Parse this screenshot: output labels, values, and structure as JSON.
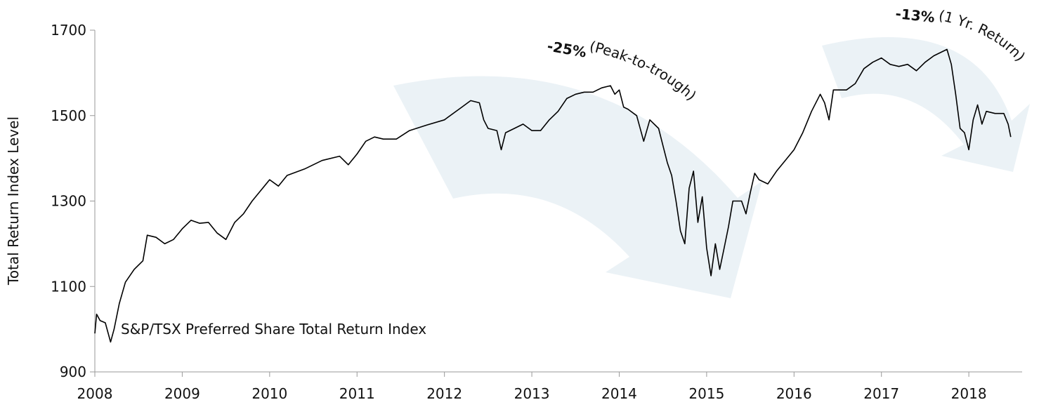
{
  "chart_data": {
    "type": "line",
    "y_label": "Total Return Index Level",
    "series_label": "S&P/TSX Preferred Share Total Return Index",
    "annotations": [
      {
        "value": "-25%",
        "text": "(Peak-to-trough)"
      },
      {
        "value": "-13%",
        "text": "(1 Yr. Return)"
      }
    ],
    "xlim": [
      2008,
      2018.61
    ],
    "xticks": [
      2008,
      2009,
      2010,
      2011,
      2012,
      2013,
      2014,
      2015,
      2016,
      2017,
      2018
    ],
    "ylim": [
      900,
      1700
    ],
    "yticks": [
      900,
      1100,
      1300,
      1500,
      1700
    ],
    "series": [
      {
        "name": "S&P/TSX Preferred Share Total Return Index",
        "color": "#000000",
        "x": [
          2008.0,
          2008.02,
          2008.06,
          2008.12,
          2008.18,
          2008.22,
          2008.28,
          2008.35,
          2008.45,
          2008.55,
          2008.6,
          2008.7,
          2008.8,
          2008.9,
          2009.0,
          2009.1,
          2009.2,
          2009.3,
          2009.4,
          2009.5,
          2009.6,
          2009.7,
          2009.8,
          2009.9,
          2010.0,
          2010.1,
          2010.2,
          2010.4,
          2010.6,
          2010.8,
          2010.9,
          2011.0,
          2011.1,
          2011.2,
          2011.3,
          2011.45,
          2011.6,
          2011.8,
          2012.0,
          2012.2,
          2012.3,
          2012.4,
          2012.45,
          2012.5,
          2012.6,
          2012.65,
          2012.7,
          2012.8,
          2012.9,
          2013.0,
          2013.1,
          2013.2,
          2013.3,
          2013.4,
          2013.5,
          2013.6,
          2013.7,
          2013.8,
          2013.9,
          2013.95,
          2014.0,
          2014.05,
          2014.1,
          2014.2,
          2014.28,
          2014.35,
          2014.45,
          2014.5,
          2014.55,
          2014.6,
          2014.65,
          2014.7,
          2014.75,
          2014.8,
          2014.85,
          2014.9,
          2014.95,
          2015.0,
          2015.05,
          2015.1,
          2015.15,
          2015.2,
          2015.25,
          2015.3,
          2015.4,
          2015.45,
          2015.5,
          2015.55,
          2015.6,
          2015.7,
          2015.8,
          2015.9,
          2016.0,
          2016.1,
          2016.2,
          2016.3,
          2016.35,
          2016.4,
          2016.45,
          2016.6,
          2016.7,
          2016.8,
          2016.9,
          2017.0,
          2017.1,
          2017.2,
          2017.3,
          2017.4,
          2017.5,
          2017.6,
          2017.7,
          2017.75,
          2017.8,
          2017.85,
          2017.9,
          2017.95,
          2018.0,
          2018.05,
          2018.1,
          2018.15,
          2018.2,
          2018.3,
          2018.4,
          2018.45,
          2018.48
        ],
        "values": [
          990,
          1035,
          1020,
          1015,
          970,
          1000,
          1060,
          1110,
          1140,
          1160,
          1220,
          1215,
          1200,
          1210,
          1235,
          1255,
          1248,
          1250,
          1225,
          1210,
          1250,
          1270,
          1300,
          1325,
          1350,
          1335,
          1360,
          1375,
          1395,
          1405,
          1385,
          1410,
          1440,
          1450,
          1445,
          1445,
          1465,
          1478,
          1490,
          1520,
          1535,
          1530,
          1490,
          1470,
          1465,
          1420,
          1460,
          1470,
          1480,
          1465,
          1465,
          1490,
          1510,
          1540,
          1550,
          1555,
          1555,
          1565,
          1570,
          1550,
          1560,
          1520,
          1515,
          1500,
          1440,
          1490,
          1470,
          1430,
          1390,
          1360,
          1300,
          1230,
          1200,
          1330,
          1370,
          1250,
          1310,
          1190,
          1125,
          1200,
          1140,
          1190,
          1240,
          1300,
          1300,
          1270,
          1320,
          1365,
          1350,
          1340,
          1370,
          1395,
          1420,
          1460,
          1510,
          1550,
          1530,
          1490,
          1560,
          1560,
          1575,
          1610,
          1625,
          1635,
          1620,
          1615,
          1620,
          1605,
          1625,
          1640,
          1650,
          1655,
          1620,
          1550,
          1470,
          1460,
          1420,
          1490,
          1525,
          1480,
          1510,
          1505,
          1505,
          1480,
          1450
        ]
      }
    ]
  }
}
